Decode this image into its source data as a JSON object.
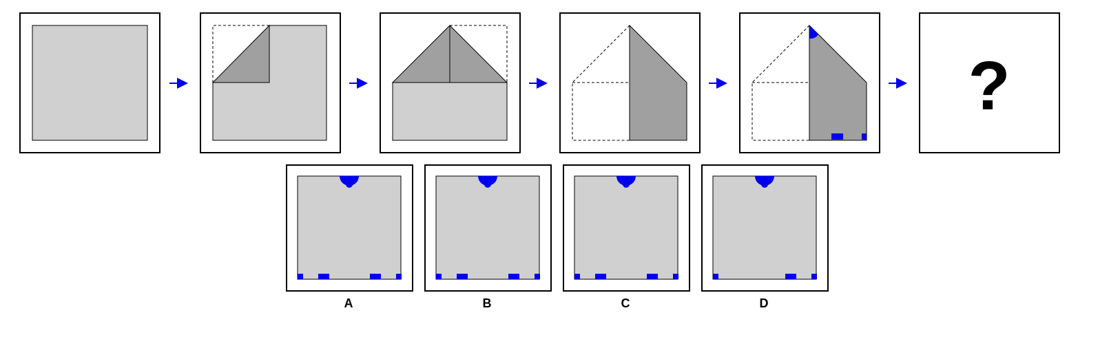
{
  "question_mark": "?",
  "options": [
    {
      "label": "A",
      "bottom_notches": [
        "left-edge",
        "left-inner",
        "right-inner",
        "right-edge"
      ]
    },
    {
      "label": "B",
      "bottom_notches": [
        "left-edge",
        "left-inner",
        "right-inner",
        "right-edge"
      ]
    },
    {
      "label": "C",
      "bottom_notches": [
        "left-edge",
        "left-inner",
        "right-inner",
        "right-edge"
      ]
    },
    {
      "label": "D",
      "bottom_notches": [
        "left-edge",
        "right-inner",
        "right-edge"
      ]
    }
  ],
  "colors": {
    "paper": "#d0d0d0",
    "folded": "#a0a0a0",
    "hole": "#0000ee",
    "arrow": "#0000ee",
    "frame": "#000000"
  }
}
